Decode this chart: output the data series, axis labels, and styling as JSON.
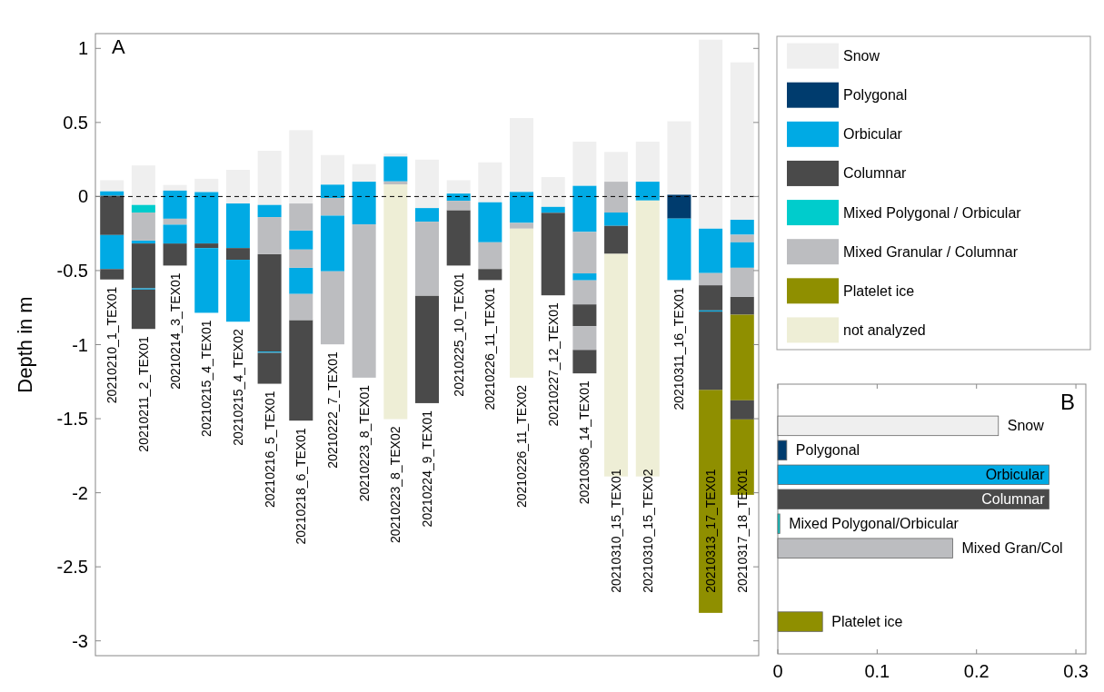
{
  "chart_data": [
    {
      "type": "bar",
      "ylabel": "Depth in m",
      "annotations": [
        "A"
      ],
      "categories": [
        "20210210_1_TEX01",
        "20210211_2_TEX01",
        "20210214_3_TEX01",
        "20210215_4_TEX01",
        "20210215_4_TEX02",
        "20210216_5_TEX01",
        "20210218_6_TEX01",
        "20210222_7_TEX01",
        "20210223_8_TEX01",
        "20210223_8_TEX02",
        "20210224_9_TEX01",
        "20210225_10_TEX01",
        "20210226_11_TEX01",
        "20210226_11_TEX02",
        "20210227_12_TEX01",
        "20210306_14_TEX01",
        "20210310_15_TEX01",
        "20210310_15_TEX02",
        "20210311_16_TEX01",
        "20210313_17_TEX01",
        "20210317_18_TEX01"
      ],
      "ylim": [
        -3.1,
        1.1
      ],
      "yticks": [
        -3,
        -2.5,
        -2,
        -1.5,
        -1,
        -0.5,
        0,
        0.5,
        1
      ],
      "legend": "right",
      "ref_lines": [
        {
          "axis": "y",
          "value": 0,
          "color": "#000000",
          "line_style": "dashed"
        }
      ],
      "series": [
        {
          "name": "Snow",
          "color": "#efefef",
          "values": [
            0.075,
            0.267,
            0.038,
            0.09,
            0.227,
            0.366,
            0.495,
            0.2,
            0.119,
            0.02,
            0.327,
            0.09,
            0.27,
            0.499,
            0.201,
            0.298,
            0.201,
            0.27,
            0.496,
            1.276,
            1.063
          ],
          "base": [
            0.035,
            -0.057,
            0.04,
            0.03,
            -0.047,
            -0.057,
            -0.047,
            0.08,
            0.1,
            0.27,
            -0.078,
            0.02,
            -0.039,
            0.031,
            -0.07,
            0.072,
            0.1,
            0.1,
            0.012,
            -0.217,
            -0.157
          ]
        },
        {
          "name": "Polygonal",
          "color": "#003c6e",
          "values": [
            null,
            null,
            null,
            null,
            null,
            null,
            null,
            null,
            null,
            null,
            null,
            null,
            null,
            null,
            null,
            null,
            null,
            null,
            0.161,
            null,
            null
          ],
          "base": [
            null,
            null,
            null,
            null,
            null,
            null,
            null,
            null,
            null,
            null,
            null,
            null,
            null,
            null,
            null,
            null,
            null,
            null,
            -0.149,
            null,
            null
          ]
        },
        {
          "name": "Orbicular",
          "color": "#00aae4",
          "values": [
            0.03,
            0.02,
            0.19,
            0.347,
            0.301,
            0.082,
            0.129,
            0.09,
            0.288,
            0.168,
            0.092,
            0.049,
            0.27,
            0.209,
            0.04,
            0.311,
            0.09,
            0.127,
            0.415,
            0.3,
            0.101
          ],
          "base": [
            0.005,
            -0.317,
            -0.15,
            -0.317,
            -0.348,
            -0.139,
            -0.358,
            -0.01,
            -0.188,
            0.102,
            -0.17,
            -0.029,
            -0.309,
            -0.178,
            -0.11,
            -0.239,
            -0.198,
            -0.027,
            -0.564,
            -0.517,
            -0.258
          ]
        },
        {
          "name": "Columnar",
          "color": "#4a4a4a",
          "values": [
            0.265,
            0.303,
            0.149,
            0.031,
            0.079,
            0.658,
            0.679,
            null,
            null,
            null,
            0.726,
            0.374,
            0.075,
            null,
            0.557,
            0.147,
            0.189,
            null,
            null,
            0.17,
            0.121
          ],
          "base": [
            -0.26,
            -0.62,
            -0.466,
            -0.348,
            -0.427,
            -1.047,
            -1.513,
            null,
            null,
            null,
            -1.395,
            -0.466,
            -0.564,
            null,
            -0.667,
            -0.875,
            -0.387,
            null,
            null,
            -0.769,
            -0.798
          ]
        },
        {
          "name": "Mixed Polygonal / Orbicular",
          "color": "#00cccc",
          "values": [
            null,
            0.051,
            null,
            null,
            null,
            null,
            null,
            null,
            null,
            null,
            null,
            null,
            null,
            null,
            null,
            null,
            null,
            null,
            null,
            null,
            null
          ],
          "base": [
            null,
            -0.108,
            null,
            null,
            null,
            null,
            null,
            null,
            null,
            null,
            null,
            null,
            null,
            null,
            null,
            null,
            null,
            null,
            null,
            null,
            null
          ]
        },
        {
          "name": "Mixed Granular / Columnar",
          "color": "#bcbdc0",
          "values": [
            null,
            0.189,
            0.04,
            null,
            null,
            0.25,
            0.182,
            0.119,
            1.035,
            0.02,
            0.499,
            0.063,
            0.18,
            0.039,
            null,
            0.28,
            0.208,
            null,
            null,
            0.082,
            0.051
          ],
          "base": [
            null,
            -0.297,
            -0.19,
            null,
            null,
            -0.389,
            -0.229,
            -0.129,
            -1.223,
            0.082,
            -0.669,
            -0.092,
            -0.489,
            -0.217,
            null,
            -0.519,
            -0.108,
            null,
            null,
            -0.599,
            -0.309
          ]
        },
        {
          "name": "Platelet ice",
          "color": "#8f8f00",
          "values": [
            null,
            null,
            null,
            null,
            null,
            null,
            null,
            null,
            null,
            null,
            null,
            null,
            null,
            null,
            null,
            null,
            null,
            null,
            null,
            1.506,
            0.578
          ],
          "base": [
            null,
            null,
            null,
            null,
            null,
            null,
            null,
            null,
            null,
            null,
            null,
            null,
            null,
            null,
            null,
            null,
            null,
            null,
            null,
            -2.811,
            -1.376
          ]
        },
        {
          "name": "not analyzed",
          "color": "#eeeed6",
          "values": [
            null,
            null,
            null,
            null,
            null,
            null,
            null,
            null,
            null,
            1.585,
            null,
            null,
            null,
            1.006,
            null,
            null,
            1.503,
            1.863,
            null,
            null,
            null
          ],
          "base": [
            null,
            null,
            null,
            null,
            null,
            null,
            null,
            null,
            null,
            -1.503,
            null,
            null,
            null,
            -1.223,
            null,
            null,
            -1.89,
            -1.89,
            null,
            null,
            null
          ]
        },
        {
          "color": "#00aae4",
          "values": [
            0.23,
            0.008,
            0.127,
            0.437,
            0.418,
            0.008,
            0.177,
            0.376,
            null,
            null,
            null,
            null,
            null,
            null,
            null,
            0.047,
            null,
            null,
            null,
            0.008,
            0.172
          ],
          "base": [
            -0.49,
            -0.628,
            -0.317,
            -0.785,
            -0.845,
            -1.055,
            -0.658,
            -0.505,
            null,
            null,
            null,
            null,
            null,
            null,
            null,
            -0.566,
            null,
            null,
            null,
            -0.777,
            -0.481
          ]
        },
        {
          "color": "#4a4a4a",
          "values": [
            0.07,
            0.266,
            null,
            null,
            null,
            0.209,
            null,
            null,
            null,
            null,
            null,
            null,
            null,
            null,
            null,
            0.159,
            null,
            null,
            null,
            0.528,
            0.129
          ],
          "base": [
            -0.56,
            -0.894,
            null,
            null,
            null,
            -1.264,
            null,
            null,
            null,
            null,
            null,
            null,
            null,
            null,
            null,
            -1.194,
            null,
            null,
            null,
            -1.305,
            -1.505
          ]
        },
        {
          "color": "#bcbdc0",
          "values": [
            null,
            null,
            null,
            null,
            null,
            null,
            0.123,
            0.493,
            null,
            null,
            null,
            null,
            null,
            null,
            null,
            0.162,
            null,
            null,
            null,
            null,
            0.196
          ],
          "base": [
            null,
            null,
            null,
            null,
            null,
            null,
            -0.481,
            -0.998,
            null,
            null,
            null,
            null,
            null,
            null,
            null,
            -0.728,
            null,
            null,
            null,
            null,
            -0.677
          ]
        },
        {
          "color": "#bcbdc0",
          "values": [
            null,
            null,
            null,
            null,
            null,
            null,
            0.176,
            null,
            null,
            null,
            null,
            null,
            null,
            null,
            null,
            0.16,
            null,
            null,
            null,
            null,
            null
          ],
          "base": [
            null,
            null,
            null,
            null,
            null,
            null,
            -0.834,
            null,
            null,
            null,
            null,
            null,
            null,
            null,
            null,
            -1.035,
            null,
            null,
            null,
            null,
            null
          ]
        },
        {
          "color": "#8f8f00",
          "values": [
            null,
            null,
            null,
            null,
            null,
            null,
            null,
            null,
            null,
            null,
            null,
            null,
            null,
            null,
            null,
            null,
            null,
            null,
            null,
            null,
            0.509
          ],
          "base": [
            null,
            null,
            null,
            null,
            null,
            null,
            null,
            null,
            null,
            null,
            null,
            null,
            null,
            null,
            null,
            null,
            null,
            null,
            null,
            null,
            -2.014
          ]
        }
      ]
    },
    {
      "type": "bar",
      "orientation": "horizontal",
      "annotations": [
        "B"
      ],
      "tick_labels": "x",
      "categories": [
        null,
        "Snow",
        "Polygonal",
        "Orbicular",
        "Columnar",
        "Mixed Polygonal/Orbicular",
        "Mixed Gran/Col",
        null,
        null,
        "Platelet ice"
      ],
      "values": [
        null,
        0.222,
        0.009,
        0.273,
        0.273,
        0.002,
        0.176,
        null,
        null,
        0.045
      ],
      "colors": [
        null,
        "#efefef",
        "#003c6e",
        "#00aae4",
        "#4a4a4a",
        "#00cccc",
        "#bcbdc0",
        null,
        null,
        "#8f8f00"
      ],
      "xlim": [
        0,
        0.31
      ],
      "xticks": [
        0,
        0.1,
        0.2,
        0.3
      ]
    }
  ]
}
